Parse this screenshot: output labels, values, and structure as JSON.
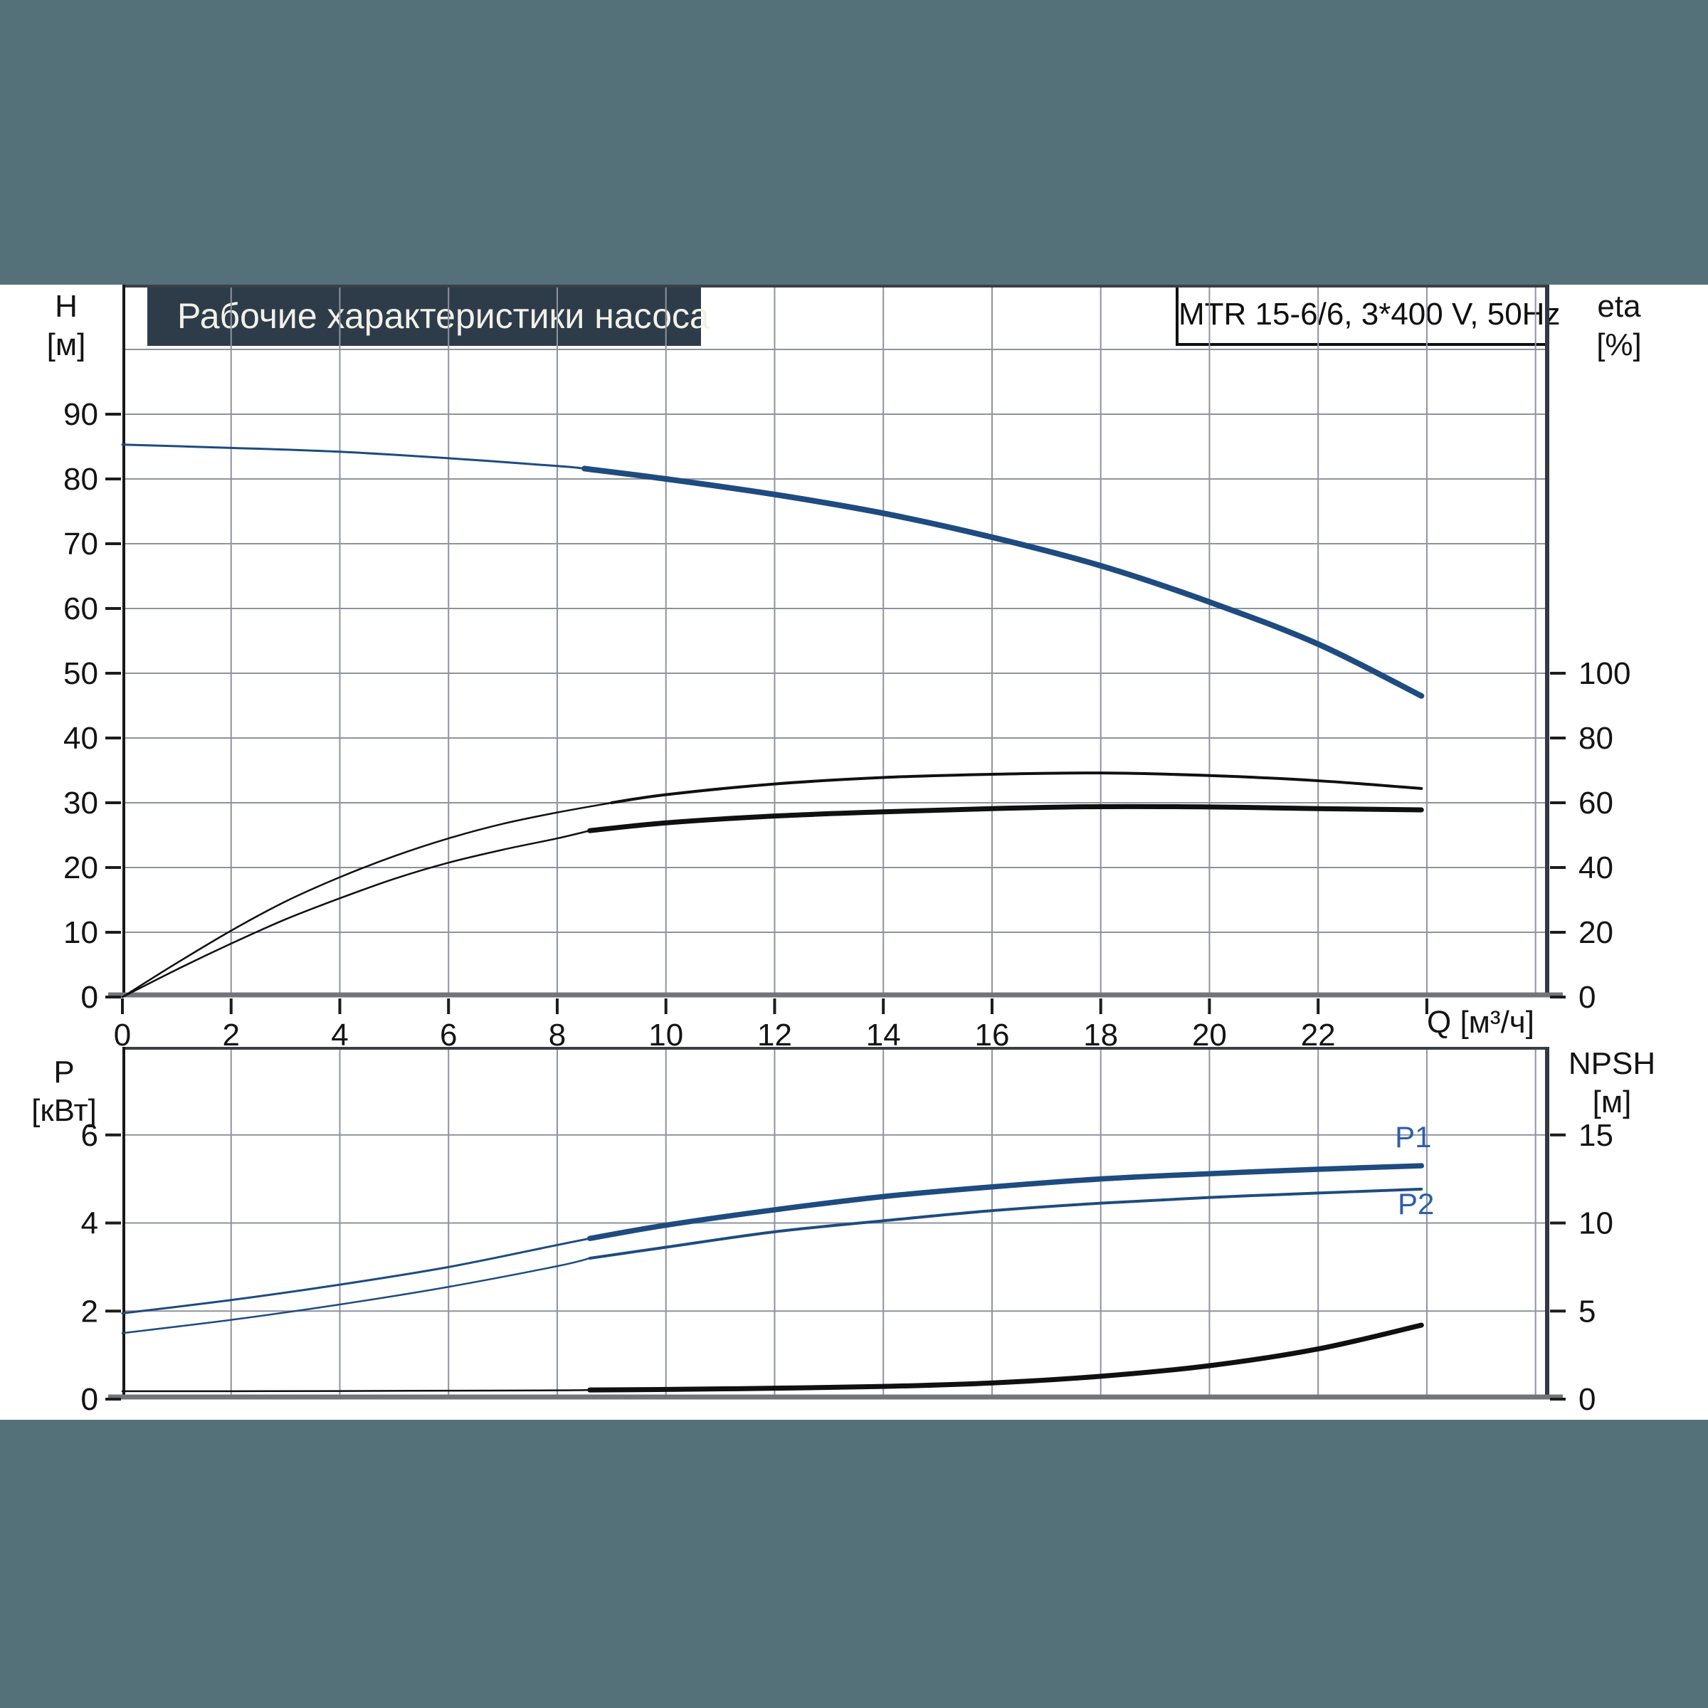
{
  "window": {
    "background_color": "#547179",
    "panel_color": "#ffffff"
  },
  "title_banner": {
    "text": "Рабочие характеристики насоса",
    "bg_color": "#2E3C4A",
    "text_color": "#F1F1EA"
  },
  "model_box": {
    "text": "MTR 15-6/6, 3*400 V, 50Hz"
  },
  "axis_labels": {
    "h": "H",
    "h_unit": "[м]",
    "eta": "eta",
    "eta_unit": "[%]",
    "q": "Q [м³/ч]",
    "p": "P",
    "p_unit": "[кВт]",
    "npsh": "NPSH",
    "npsh_unit": "[м]"
  },
  "colors": {
    "curve_blue": "#1E4B80",
    "curve_black": "#101010",
    "label_blue": "#2D5FA8",
    "grid": "#8E939D",
    "border": "#3A3F46",
    "bottom_axis": "#71757A",
    "tick": "#1C1C1C",
    "tick_text": "#141414"
  },
  "chart_data": [
    {
      "id": "hq",
      "type": "line",
      "title": "Рабочие характеристики насоса",
      "x_axis": {
        "label": "Q [м³/ч]",
        "min": 0,
        "max": 26.24,
        "grid_values": [
          2,
          4,
          6,
          8,
          10,
          12,
          14,
          16,
          18,
          20,
          22,
          24,
          26
        ],
        "ticks": [
          [
            0,
            "0"
          ],
          [
            2,
            "2"
          ],
          [
            4,
            "4"
          ],
          [
            6,
            "6"
          ],
          [
            8,
            "8"
          ],
          [
            10,
            "10"
          ],
          [
            12,
            "12"
          ],
          [
            14,
            "14"
          ],
          [
            16,
            "16"
          ],
          [
            18,
            "18"
          ],
          [
            20,
            "20"
          ],
          [
            22,
            "22"
          ],
          [
            24,
            ""
          ]
        ]
      },
      "y_left": {
        "label": "H [м]",
        "min": 0,
        "max": 110,
        "grid_values": [
          10,
          20,
          30,
          40,
          50,
          60,
          70,
          80,
          90,
          100
        ],
        "ticks": [
          [
            0,
            "0"
          ],
          [
            10,
            "10"
          ],
          [
            20,
            "20"
          ],
          [
            30,
            "30"
          ],
          [
            40,
            "40"
          ],
          [
            50,
            "50"
          ],
          [
            60,
            "60"
          ],
          [
            70,
            "70"
          ],
          [
            80,
            "80"
          ],
          [
            90,
            "90"
          ]
        ]
      },
      "y_right": {
        "label": "eta [%]",
        "min": 0,
        "max": 220,
        "ticks": [
          [
            0,
            "0"
          ],
          [
            20,
            "20"
          ],
          [
            40,
            "40"
          ],
          [
            60,
            "60"
          ],
          [
            80,
            "80"
          ],
          [
            100,
            "100"
          ]
        ]
      },
      "series": [
        {
          "name": "H",
          "axis": "left",
          "color": "#1E4B80",
          "width_thin": 3,
          "width_thick": 8,
          "thick_from": 8.5,
          "points": [
            [
              0,
              85.3
            ],
            [
              2,
              84.8
            ],
            [
              4,
              84.2
            ],
            [
              6,
              83.2
            ],
            [
              8,
              82.0
            ],
            [
              8.5,
              81.6
            ],
            [
              10,
              80.0
            ],
            [
              12,
              77.6
            ],
            [
              14,
              74.7
            ],
            [
              16,
              71.0
            ],
            [
              18,
              66.6
            ],
            [
              20,
              61.0
            ],
            [
              22,
              54.5
            ],
            [
              23.9,
              46.5
            ]
          ]
        },
        {
          "name": "eta",
          "axis": "right",
          "color": "#101010",
          "width_thin": 2.5,
          "width_thick": 4,
          "thick_from": 9,
          "points": [
            [
              0,
              0
            ],
            [
              1,
              10.5
            ],
            [
              2,
              20.5
            ],
            [
              3,
              29.5
            ],
            [
              4,
              37
            ],
            [
              5,
              43.5
            ],
            [
              6,
              49
            ],
            [
              7,
              53.5
            ],
            [
              8,
              57
            ],
            [
              9,
              60
            ],
            [
              10,
              62.5
            ],
            [
              12,
              65.8
            ],
            [
              14,
              67.8
            ],
            [
              16,
              68.8
            ],
            [
              18,
              69.2
            ],
            [
              20,
              68.4
            ],
            [
              22,
              66.8
            ],
            [
              23.9,
              64.4
            ]
          ]
        },
        {
          "name": "eta-total",
          "axis": "right",
          "color": "#101010",
          "width_thin": 2.5,
          "width_thick": 7,
          "thick_from": 8.6,
          "points": [
            [
              0,
              0
            ],
            [
              1,
              8.5
            ],
            [
              2,
              16.5
            ],
            [
              3,
              24
            ],
            [
              4,
              30.5
            ],
            [
              5,
              36.5
            ],
            [
              6,
              41.5
            ],
            [
              7,
              45.5
            ],
            [
              8,
              49
            ],
            [
              8.6,
              51.4
            ],
            [
              10,
              53.8
            ],
            [
              12,
              55.9
            ],
            [
              14,
              57.2
            ],
            [
              16,
              58.2
            ],
            [
              18,
              58.8
            ],
            [
              20,
              58.7
            ],
            [
              22,
              58.2
            ],
            [
              23.9,
              57.8
            ]
          ]
        }
      ],
      "annotations": []
    },
    {
      "id": "power",
      "type": "line",
      "title": "",
      "x_axis": {
        "label": "",
        "min": 0,
        "max": 26.24,
        "grid_values": [
          2,
          4,
          6,
          8,
          10,
          12,
          14,
          16,
          18,
          20,
          22,
          24,
          26
        ],
        "ticks": []
      },
      "y_left": {
        "label": "P [кВт]",
        "min": 0,
        "max": 8,
        "grid_values": [
          2,
          4,
          6
        ],
        "ticks": [
          [
            0,
            "0"
          ],
          [
            2,
            "2"
          ],
          [
            4,
            "4"
          ],
          [
            6,
            "6"
          ]
        ]
      },
      "y_right": {
        "label": "NPSH [м]",
        "min": 0,
        "max": 20,
        "ticks": [
          [
            0,
            "0"
          ],
          [
            5,
            "5"
          ],
          [
            10,
            "10"
          ],
          [
            15,
            "15"
          ]
        ]
      },
      "series": [
        {
          "name": "P1",
          "axis": "left",
          "color": "#1E4B80",
          "width_thin": 3,
          "width_thick": 7.5,
          "thick_from": 8.6,
          "points": [
            [
              0,
              1.95
            ],
            [
              2,
              2.25
            ],
            [
              4,
              2.6
            ],
            [
              6,
              3.0
            ],
            [
              8,
              3.5
            ],
            [
              8.6,
              3.65
            ],
            [
              10,
              3.95
            ],
            [
              12,
              4.3
            ],
            [
              14,
              4.6
            ],
            [
              16,
              4.82
            ],
            [
              18,
              5.0
            ],
            [
              20,
              5.12
            ],
            [
              22,
              5.22
            ],
            [
              23.9,
              5.3
            ]
          ]
        },
        {
          "name": "P2",
          "axis": "left",
          "color": "#1E4B80",
          "width_thin": 2.5,
          "width_thick": 4,
          "thick_from": 8.6,
          "points": [
            [
              0,
              1.5
            ],
            [
              2,
              1.8
            ],
            [
              4,
              2.15
            ],
            [
              6,
              2.55
            ],
            [
              8,
              3.02
            ],
            [
              8.6,
              3.2
            ],
            [
              10,
              3.45
            ],
            [
              12,
              3.8
            ],
            [
              14,
              4.05
            ],
            [
              16,
              4.28
            ],
            [
              18,
              4.45
            ],
            [
              20,
              4.58
            ],
            [
              22,
              4.68
            ],
            [
              23.9,
              4.77
            ]
          ]
        },
        {
          "name": "NPSH",
          "axis": "right",
          "color": "#101010",
          "width_thin": 2.5,
          "width_thick": 7,
          "thick_from": 8.6,
          "points": [
            [
              0,
              0.45
            ],
            [
              2,
              0.45
            ],
            [
              4,
              0.46
            ],
            [
              6,
              0.48
            ],
            [
              8,
              0.5
            ],
            [
              8.6,
              0.52
            ],
            [
              10,
              0.55
            ],
            [
              12,
              0.62
            ],
            [
              14,
              0.72
            ],
            [
              16,
              0.92
            ],
            [
              18,
              1.3
            ],
            [
              20,
              1.9
            ],
            [
              22,
              2.85
            ],
            [
              23.9,
              4.2
            ]
          ]
        }
      ],
      "annotations": [
        {
          "text": "P1",
          "x": 23.75,
          "y": 5.72,
          "axis": "left",
          "color": "#2D5FA8"
        },
        {
          "text": "P2",
          "x": 23.8,
          "y": 4.2,
          "axis": "left",
          "color": "#2D5FA8"
        }
      ]
    }
  ]
}
